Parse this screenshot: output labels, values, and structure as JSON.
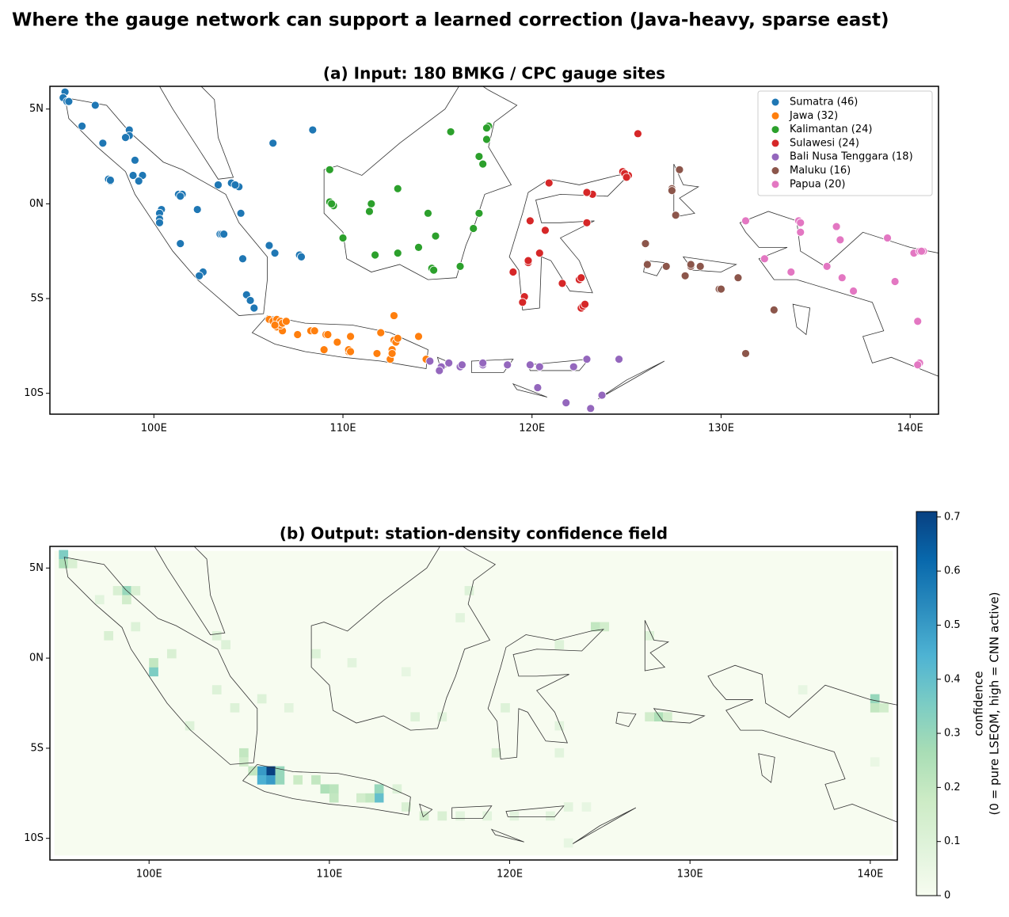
{
  "title": "Where the gauge network can support a learned correction (Java-heavy, sparse east)",
  "chart_data": [
    {
      "type": "scatter",
      "title": "(a) Input: 180 BMKG / CPC gauge sites",
      "xlim": [
        94.5,
        141.5
      ],
      "ylim": [
        -11.1,
        6.2
      ],
      "xticks": [
        {
          "value": 100,
          "label": "100E"
        },
        {
          "value": 110,
          "label": "110E"
        },
        {
          "value": 120,
          "label": "120E"
        },
        {
          "value": 130,
          "label": "130E"
        },
        {
          "value": 140,
          "label": "140E"
        }
      ],
      "yticks": [
        {
          "value": 5,
          "label": "5N"
        },
        {
          "value": 0,
          "label": "0N"
        },
        {
          "value": -5,
          "label": "5S"
        },
        {
          "value": -10,
          "label": "10S"
        }
      ],
      "legend": "upper right",
      "series": [
        {
          "name": "Sumatra (46)",
          "color": "#1f77b4",
          "x": [
            95.3,
            95.2,
            95.4,
            96.9,
            96.2,
            97.3,
            98.7,
            98.7,
            98.5,
            99.0,
            97.6,
            97.7,
            98.9,
            99.4,
            101.3,
            101.5,
            100.4,
            100.3,
            100.3,
            100.3,
            102.3,
            101.4,
            103.4,
            104.1,
            104.5,
            104.3,
            104.6,
            103.5,
            103.6,
            104.7,
            106.1,
            106.4,
            107.7,
            107.8,
            102.6,
            102.4,
            104.9,
            105.1,
            105.3,
            106.3,
            108.4,
            95.5,
            99.2,
            101.4,
            103.7,
            97.7
          ],
          "values": [
            5.9,
            5.6,
            5.4,
            5.2,
            4.1,
            3.2,
            3.9,
            3.6,
            3.5,
            2.3,
            1.3,
            1.2,
            1.5,
            1.5,
            0.5,
            0.5,
            -0.3,
            -0.5,
            -0.8,
            -1.0,
            -0.3,
            -2.1,
            1.0,
            1.1,
            0.9,
            1.0,
            -0.5,
            -1.6,
            -1.6,
            -2.9,
            -2.2,
            -2.6,
            -2.7,
            -2.8,
            -3.6,
            -3.8,
            -4.8,
            -5.1,
            -5.5,
            3.2,
            3.9,
            5.4,
            1.2,
            0.4,
            -1.6,
            1.25
          ]
        },
        {
          "name": "Jawa (32)",
          "color": "#ff7f0e",
          "x": [
            106.1,
            106.3,
            106.5,
            106.7,
            106.5,
            106.8,
            106.7,
            107.6,
            108.3,
            108.5,
            109.1,
            109.0,
            109.7,
            110.3,
            110.4,
            110.3,
            111.8,
            112.0,
            112.7,
            112.7,
            112.8,
            112.6,
            112.5,
            112.6,
            114.0,
            114.4,
            106.8,
            106.4,
            107.0,
            110.4,
            112.9,
            109.2
          ],
          "values": [
            -6.1,
            -6.2,
            -6.1,
            -6.2,
            -6.5,
            -6.7,
            -6.4,
            -6.9,
            -6.7,
            -6.7,
            -6.9,
            -7.7,
            -7.3,
            -7.8,
            -7.0,
            -7.7,
            -7.9,
            -6.8,
            -5.9,
            -7.2,
            -7.3,
            -7.7,
            -8.2,
            -7.9,
            -7.0,
            -8.2,
            -6.3,
            -6.4,
            -6.2,
            -7.8,
            -7.1,
            -6.9
          ]
        },
        {
          "name": "Kalimantan (24)",
          "color": "#2ca02c",
          "x": [
            115.7,
            117.7,
            117.6,
            117.2,
            117.4,
            109.3,
            112.9,
            109.3,
            109.5,
            111.5,
            111.4,
            114.5,
            117.2,
            116.9,
            110.0,
            114.9,
            114.0,
            112.9,
            111.7,
            114.7,
            114.8,
            116.2,
            109.4,
            117.6
          ],
          "values": [
            3.8,
            4.1,
            3.4,
            2.5,
            2.1,
            1.8,
            0.8,
            0.1,
            -0.1,
            0.0,
            -0.4,
            -0.5,
            -0.5,
            -1.3,
            -1.8,
            -1.7,
            -2.3,
            -2.6,
            -2.7,
            -3.4,
            -3.5,
            -3.3,
            0.0,
            4.0
          ]
        },
        {
          "name": "Sulawesi (24)",
          "color": "#d62728",
          "x": [
            125.6,
            120.9,
            122.9,
            123.2,
            124.8,
            125.1,
            124.9,
            119.9,
            120.7,
            122.9,
            120.4,
            119.8,
            119.0,
            119.6,
            119.5,
            121.6,
            122.5,
            122.6,
            122.6,
            122.7,
            122.9,
            119.8,
            125.0,
            122.8
          ],
          "values": [
            3.7,
            1.1,
            0.6,
            0.5,
            1.7,
            1.5,
            1.6,
            -0.9,
            -1.4,
            -1.0,
            -2.6,
            -3.1,
            -3.6,
            -4.9,
            -5.2,
            -4.2,
            -4.0,
            -3.9,
            -5.5,
            -5.4,
            0.6,
            -3.0,
            1.4,
            -5.3
          ]
        },
        {
          "name": "Bali Nusa Tenggara (18)",
          "color": "#9467bd",
          "x": [
            114.6,
            115.2,
            115.6,
            116.2,
            116.3,
            117.4,
            118.7,
            119.9,
            120.4,
            122.2,
            122.9,
            124.6,
            120.3,
            121.8,
            123.1,
            123.7,
            115.1,
            117.4
          ],
          "values": [
            -8.3,
            -8.6,
            -8.4,
            -8.6,
            -8.5,
            -8.5,
            -8.5,
            -8.5,
            -8.6,
            -8.6,
            -8.2,
            -8.2,
            -9.7,
            -10.5,
            -10.8,
            -10.1,
            -8.8,
            -8.4
          ]
        },
        {
          "name": "Maluku (16)",
          "color": "#8c564b",
          "x": [
            127.8,
            127.4,
            127.6,
            126.0,
            127.1,
            128.1,
            128.4,
            128.9,
            129.9,
            130.9,
            132.8,
            131.3,
            127.4,
            128.4,
            126.1,
            130.0
          ],
          "values": [
            1.8,
            0.8,
            -0.6,
            -2.1,
            -3.3,
            -3.8,
            -3.3,
            -3.3,
            -4.5,
            -3.9,
            -5.6,
            -7.9,
            0.7,
            -3.2,
            -3.2,
            -4.5
          ]
        },
        {
          "name": "Papua (20)",
          "color": "#e377c2",
          "x": [
            131.3,
            134.1,
            134.2,
            136.1,
            136.3,
            138.8,
            140.2,
            140.7,
            140.5,
            132.3,
            133.7,
            135.6,
            136.4,
            137.0,
            139.2,
            140.4,
            140.5,
            140.4,
            134.2,
            140.6
          ],
          "values": [
            -0.9,
            -0.9,
            -1.5,
            -1.2,
            -1.9,
            -1.8,
            -2.6,
            -2.5,
            -2.5,
            -2.9,
            -3.6,
            -3.3,
            -3.9,
            -4.6,
            -4.1,
            -6.2,
            -8.4,
            -8.5,
            -1.0,
            -2.5
          ]
        }
      ]
    },
    {
      "type": "heatmap",
      "title": "(b) Output: station-density confidence field",
      "xlim": [
        94.5,
        141.5
      ],
      "ylim": [
        -11.2,
        6.2
      ],
      "cell_size": 0.5,
      "cmap": "GnBu",
      "xticks": [
        {
          "value": 100,
          "label": "100E"
        },
        {
          "value": 110,
          "label": "110E"
        },
        {
          "value": 120,
          "label": "120E"
        },
        {
          "value": 130,
          "label": "130E"
        },
        {
          "value": 140,
          "label": "140E"
        }
      ],
      "yticks": [
        {
          "value": 5,
          "label": "5N"
        },
        {
          "value": 0,
          "label": "0N"
        },
        {
          "value": -5,
          "label": "5S"
        },
        {
          "value": -10,
          "label": "10S"
        }
      ],
      "clim": [
        0,
        0.71
      ],
      "cticks": [
        0.0,
        0.1,
        0.2,
        0.3,
        0.4,
        0.5,
        0.6,
        0.7
      ],
      "colorbar_label": [
        "confidence",
        "(0 = pure LSEQM, high = CNN active)"
      ],
      "x": [
        106.75,
        106.25,
        106.25,
        106.75,
        107.25,
        107.25,
        105.75,
        95.25,
        95.25,
        95.75,
        98.75,
        98.25,
        99.25,
        98.75,
        97.25,
        97.75,
        99.25,
        100.25,
        100.25,
        101.25,
        103.75,
        104.25,
        103.75,
        104.75,
        106.25,
        107.75,
        102.25,
        105.25,
        105.25,
        108.25,
        109.25,
        109.75,
        110.25,
        110.25,
        111.75,
        112.75,
        112.75,
        112.25,
        113.75,
        114.25,
        115.25,
        116.25,
        117.25,
        118.75,
        120.25,
        122.25,
        123.25,
        124.25,
        123.25,
        109.25,
        111.25,
        114.25,
        114.75,
        117.25,
        117.75,
        116.25,
        124.75,
        125.25,
        122.75,
        119.75,
        119.25,
        122.75,
        122.75,
        128.25,
        127.75,
        128.75,
        127.75,
        140.25,
        140.25,
        140.75,
        136.25,
        140.25
      ],
      "y": [
        -6.25,
        -6.25,
        -6.75,
        -6.75,
        -6.25,
        -6.75,
        -6.25,
        5.75,
        5.25,
        5.25,
        3.75,
        3.75,
        3.75,
        3.25,
        3.25,
        1.25,
        1.75,
        -0.75,
        -0.25,
        0.25,
        1.25,
        0.75,
        -1.75,
        -2.75,
        -2.25,
        -2.75,
        -3.75,
        -5.25,
        -5.75,
        -6.75,
        -6.75,
        -7.25,
        -7.25,
        -7.75,
        -7.75,
        -7.25,
        -7.75,
        -7.75,
        -7.25,
        -8.25,
        -8.75,
        -8.75,
        -8.75,
        -8.75,
        -8.75,
        -8.75,
        -8.25,
        -8.25,
        -10.25,
        0.25,
        -0.25,
        -0.75,
        -3.25,
        2.25,
        3.75,
        -3.25,
        1.75,
        1.75,
        0.75,
        -2.75,
        -5.25,
        -3.75,
        -5.25,
        -3.25,
        -3.25,
        -3.25,
        1.25,
        -2.25,
        -2.75,
        -2.75,
        -1.75,
        -5.75
      ],
      "values": [
        0.71,
        0.5,
        0.45,
        0.5,
        0.3,
        0.3,
        0.2,
        0.35,
        0.25,
        0.12,
        0.3,
        0.12,
        0.12,
        0.15,
        0.08,
        0.12,
        0.1,
        0.35,
        0.2,
        0.12,
        0.1,
        0.1,
        0.1,
        0.1,
        0.1,
        0.08,
        0.1,
        0.2,
        0.15,
        0.18,
        0.2,
        0.25,
        0.22,
        0.2,
        0.15,
        0.3,
        0.4,
        0.2,
        0.1,
        0.12,
        0.15,
        0.12,
        0.08,
        0.08,
        0.08,
        0.08,
        0.08,
        0.06,
        0.06,
        0.1,
        0.08,
        0.06,
        0.1,
        0.08,
        0.1,
        0.08,
        0.2,
        0.15,
        0.1,
        0.1,
        0.12,
        0.08,
        0.08,
        0.25,
        0.15,
        0.15,
        0.1,
        0.3,
        0.2,
        0.15,
        0.06,
        0.05
      ]
    }
  ]
}
